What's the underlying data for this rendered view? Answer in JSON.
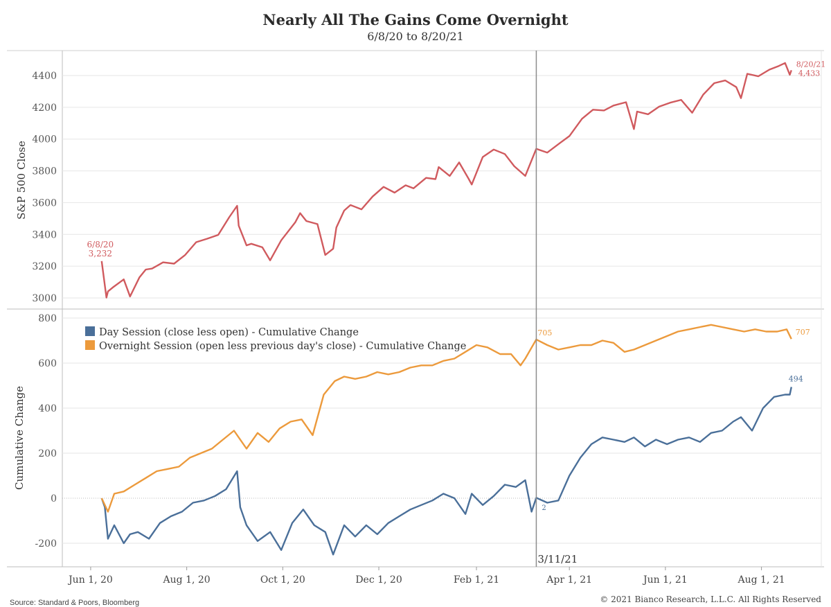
{
  "header": {
    "title": "Nearly All The Gains Come Overnight",
    "subtitle": "6/8/20 to 8/20/21"
  },
  "footer": {
    "source": "Source: Standard & Poors, Bloomberg",
    "copyright": "© 2021 Bianco Research, L.L.C. All Rights Reserved"
  },
  "colors": {
    "sp500": "#d05a5e",
    "day": "#4a6f99",
    "overnight": "#ec9a3c",
    "grid": "#e6e6e6",
    "axis": "#999999",
    "marker": "#8c8c8c"
  },
  "chart_data": [
    {
      "type": "line",
      "ylabel": "S&P 500 Close",
      "ylim": [
        2950,
        4500
      ],
      "yticks": [
        3000,
        3200,
        3400,
        3600,
        3800,
        4000,
        4200,
        4400
      ],
      "grid": true,
      "series": [
        {
          "x": [
            "2020-06-08",
            "2020-06-11",
            "2020-06-12",
            "2020-06-15",
            "2020-06-22",
            "2020-06-26",
            "2020-07-02",
            "2020-07-06",
            "2020-07-10",
            "2020-07-17",
            "2020-07-24",
            "2020-07-31",
            "2020-08-07",
            "2020-08-14",
            "2020-08-21",
            "2020-08-28",
            "2020-09-02",
            "2020-09-03",
            "2020-09-08",
            "2020-09-11",
            "2020-09-18",
            "2020-09-23",
            "2020-09-30",
            "2020-10-09",
            "2020-10-12",
            "2020-10-16",
            "2020-10-23",
            "2020-10-28",
            "2020-11-02",
            "2020-11-04",
            "2020-11-09",
            "2020-11-13",
            "2020-11-20",
            "2020-11-27",
            "2020-12-04",
            "2020-12-11",
            "2020-12-18",
            "2020-12-23",
            "2020-12-31",
            "2021-01-06",
            "2021-01-08",
            "2021-01-15",
            "2021-01-21",
            "2021-01-27",
            "2021-01-29",
            "2021-02-05",
            "2021-02-12",
            "2021-02-19",
            "2021-02-25",
            "2021-03-04",
            "2021-03-11",
            "2021-03-18",
            "2021-03-26",
            "2021-04-01",
            "2021-04-09",
            "2021-04-16",
            "2021-04-23",
            "2021-04-29",
            "2021-05-07",
            "2021-05-12",
            "2021-05-14",
            "2021-05-21",
            "2021-05-28",
            "2021-06-04",
            "2021-06-11",
            "2021-06-18",
            "2021-06-25",
            "2021-07-02",
            "2021-07-09",
            "2021-07-16",
            "2021-07-19",
            "2021-07-23",
            "2021-07-30",
            "2021-08-06",
            "2021-08-12",
            "2021-08-16",
            "2021-08-19",
            "2021-08-20"
          ],
          "y": [
            3232,
            3002,
            3041,
            3066,
            3117,
            3009,
            3130,
            3179,
            3185,
            3224,
            3216,
            3271,
            3351,
            3373,
            3397,
            3508,
            3580,
            3455,
            3331,
            3341,
            3319,
            3237,
            3363,
            3477,
            3534,
            3484,
            3465,
            3271,
            3310,
            3443,
            3550,
            3585,
            3558,
            3638,
            3699,
            3663,
            3709,
            3690,
            3756,
            3748,
            3824,
            3768,
            3853,
            3750,
            3714,
            3887,
            3934,
            3906,
            3829,
            3768,
            3939,
            3915,
            3975,
            4019,
            4128,
            4185,
            4180,
            4211,
            4232,
            4063,
            4173,
            4156,
            4204,
            4229,
            4247,
            4166,
            4280,
            4352,
            4369,
            4327,
            4258,
            4411,
            4395,
            4437,
            4460,
            4479,
            4405,
            4433
          ]
        }
      ],
      "annotations": [
        {
          "label": "6/8/20",
          "value": "3,232"
        },
        {
          "label": "8/20/21",
          "value": "4,433"
        }
      ]
    },
    {
      "type": "line",
      "ylabel": "Cumulative Change",
      "ylim": [
        -300,
        820
      ],
      "yticks": [
        -200,
        0,
        200,
        400,
        600,
        800
      ],
      "grid": true,
      "xticks": [
        "Jun 1, 20",
        "Aug 1, 20",
        "Oct 1, 20",
        "Dec 1, 20",
        "Feb 1, 21",
        "Apr 1, 21",
        "Jun 1, 21",
        "Aug 1, 21"
      ],
      "xtick_dates": [
        "2020-06-01",
        "2020-08-01",
        "2020-10-01",
        "2020-12-01",
        "2021-02-01",
        "2021-04-01",
        "2021-06-01",
        "2021-08-01"
      ],
      "vline": {
        "date": "2021-03-11",
        "label": "3/11/21"
      },
      "legend": "top-left",
      "series": [
        {
          "name": "Day Session (close less open) - Cumulative Change",
          "x": [
            "2020-06-08",
            "2020-06-10",
            "2020-06-12",
            "2020-06-16",
            "2020-06-22",
            "2020-06-26",
            "2020-07-01",
            "2020-07-08",
            "2020-07-15",
            "2020-07-22",
            "2020-07-29",
            "2020-08-05",
            "2020-08-12",
            "2020-08-19",
            "2020-08-26",
            "2020-09-02",
            "2020-09-04",
            "2020-09-08",
            "2020-09-15",
            "2020-09-23",
            "2020-09-30",
            "2020-10-07",
            "2020-10-14",
            "2020-10-21",
            "2020-10-28",
            "2020-11-02",
            "2020-11-09",
            "2020-11-16",
            "2020-11-23",
            "2020-11-30",
            "2020-12-07",
            "2020-12-14",
            "2020-12-21",
            "2020-12-28",
            "2021-01-04",
            "2021-01-11",
            "2021-01-18",
            "2021-01-25",
            "2021-01-29",
            "2021-02-05",
            "2021-02-12",
            "2021-02-19",
            "2021-02-26",
            "2021-03-04",
            "2021-03-08",
            "2021-03-11",
            "2021-03-18",
            "2021-03-25",
            "2021-04-01",
            "2021-04-08",
            "2021-04-15",
            "2021-04-22",
            "2021-04-29",
            "2021-05-06",
            "2021-05-12",
            "2021-05-19",
            "2021-05-26",
            "2021-06-02",
            "2021-06-09",
            "2021-06-16",
            "2021-06-23",
            "2021-06-30",
            "2021-07-07",
            "2021-07-14",
            "2021-07-19",
            "2021-07-26",
            "2021-08-02",
            "2021-08-09",
            "2021-08-16",
            "2021-08-19",
            "2021-08-20"
          ],
          "y": [
            0,
            -40,
            -180,
            -120,
            -200,
            -160,
            -150,
            -180,
            -110,
            -80,
            -60,
            -20,
            -10,
            10,
            40,
            120,
            -40,
            -120,
            -190,
            -150,
            -230,
            -110,
            -50,
            -120,
            -150,
            -250,
            -120,
            -170,
            -120,
            -160,
            -110,
            -80,
            -50,
            -30,
            -10,
            20,
            0,
            -70,
            20,
            -30,
            10,
            60,
            50,
            80,
            -60,
            2,
            -20,
            -10,
            100,
            180,
            240,
            270,
            260,
            250,
            270,
            230,
            260,
            240,
            260,
            270,
            250,
            290,
            300,
            340,
            360,
            300,
            400,
            450,
            460,
            460,
            494
          ]
        },
        {
          "name": "Overnight Session (open less previous day's close) - Cumulative Change",
          "x": [
            "2020-06-08",
            "2020-06-12",
            "2020-06-16",
            "2020-06-22",
            "2020-06-29",
            "2020-07-06",
            "2020-07-13",
            "2020-07-20",
            "2020-07-27",
            "2020-08-03",
            "2020-08-10",
            "2020-08-17",
            "2020-08-24",
            "2020-08-31",
            "2020-09-08",
            "2020-09-15",
            "2020-09-22",
            "2020-09-29",
            "2020-10-06",
            "2020-10-13",
            "2020-10-20",
            "2020-10-27",
            "2020-11-03",
            "2020-11-09",
            "2020-11-16",
            "2020-11-23",
            "2020-11-30",
            "2020-12-07",
            "2020-12-14",
            "2020-12-21",
            "2020-12-28",
            "2021-01-04",
            "2021-01-11",
            "2021-01-18",
            "2021-01-25",
            "2021-02-01",
            "2021-02-08",
            "2021-02-16",
            "2021-02-23",
            "2021-03-01",
            "2021-03-04",
            "2021-03-11",
            "2021-03-18",
            "2021-03-25",
            "2021-04-01",
            "2021-04-08",
            "2021-04-15",
            "2021-04-22",
            "2021-04-29",
            "2021-05-06",
            "2021-05-12",
            "2021-05-19",
            "2021-05-26",
            "2021-06-02",
            "2021-06-09",
            "2021-06-16",
            "2021-06-23",
            "2021-06-30",
            "2021-07-07",
            "2021-07-14",
            "2021-07-21",
            "2021-07-28",
            "2021-08-04",
            "2021-08-11",
            "2021-08-17",
            "2021-08-20"
          ],
          "y": [
            0,
            -60,
            20,
            30,
            60,
            90,
            120,
            130,
            140,
            180,
            200,
            220,
            260,
            300,
            220,
            290,
            250,
            310,
            340,
            350,
            280,
            460,
            520,
            540,
            530,
            540,
            560,
            550,
            560,
            580,
            590,
            590,
            610,
            620,
            650,
            680,
            670,
            640,
            640,
            590,
            620,
            705,
            680,
            660,
            670,
            680,
            680,
            700,
            690,
            650,
            660,
            680,
            700,
            720,
            740,
            750,
            760,
            770,
            760,
            750,
            740,
            750,
            740,
            740,
            750,
            707
          ]
        }
      ],
      "end_labels": {
        "day": "494",
        "overnight": "707",
        "day_at_vline": "2",
        "overnight_at_vline": "705"
      }
    }
  ]
}
